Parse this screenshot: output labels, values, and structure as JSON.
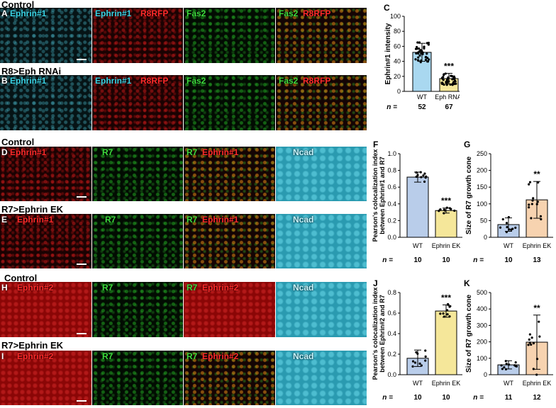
{
  "sections": {
    "control_top": "Control",
    "r8_eph": "R8>Eph RNAi",
    "control_mid": "Control",
    "r7_ephrin_mid": "R7>Ephrin EK",
    "control_bottom": "Control",
    "r7_ephrin_bottom": "R7>Ephrin EK"
  },
  "panel_letters": [
    "A",
    "B",
    "C",
    "D",
    "E",
    "F",
    "G",
    "H",
    "I",
    "J",
    "K"
  ],
  "labels": {
    "ephrin1": "Ephrin#1",
    "ephrin2": "Ephrin#2",
    "r8rfp": "R8RFP",
    "fas2": "Fas2",
    "r7": "R7",
    "ncad": "Ncad"
  },
  "colors": {
    "cyan": "#39d4e6",
    "red": "#ff2a2a",
    "green": "#3ddc3d",
    "wt_bar": "#a9d8f0",
    "mut_bar": "#f5e79a",
    "wt_bar2": "#b9cdea",
    "mut_bar2": "#f7d3b0"
  },
  "chart_data": [
    {
      "id": "C",
      "type": "bar",
      "ylabel": "Ephrin#1 intensity",
      "categories": [
        "WT",
        "Eph RNAi"
      ],
      "n_label": "n =",
      "n": [
        "52",
        "67"
      ],
      "values": [
        52,
        17
      ],
      "errors": [
        12,
        7
      ],
      "ylim": [
        0,
        100
      ],
      "yticks": [
        "0",
        "20",
        "40",
        "60",
        "80",
        "100"
      ],
      "annotation": "***"
    },
    {
      "id": "F",
      "type": "bar",
      "ylabel": "Pearson's colocalization index between Ephrin#1 and R7",
      "categories": [
        "WT",
        "Ephrin EK"
      ],
      "n_label": "n =",
      "n": [
        "10",
        "10"
      ],
      "values": [
        0.72,
        0.32
      ],
      "errors": [
        0.06,
        0.03
      ],
      "ylim": [
        0,
        1.0
      ],
      "yticks": [
        "0.0",
        "0.2",
        "0.4",
        "0.6",
        "0.8",
        "1.0"
      ],
      "annotation": "***"
    },
    {
      "id": "G",
      "type": "bar",
      "ylabel": "Size of R7 growth cone",
      "categories": [
        "WT",
        "Ephrin EK"
      ],
      "n_label": "n =",
      "n": [
        "10",
        "13"
      ],
      "values": [
        38,
        112
      ],
      "errors": [
        20,
        55
      ],
      "ylim": [
        0,
        250
      ],
      "yticks": [
        "0",
        "50",
        "100",
        "150",
        "200",
        "250"
      ],
      "annotation": "**"
    },
    {
      "id": "J",
      "type": "bar",
      "ylabel": "Pearson's colocalization index between Ephrin#2 and R7",
      "categories": [
        "WT",
        "Ephrin EK"
      ],
      "n_label": "n =",
      "n": [
        "10",
        "10"
      ],
      "values": [
        0.16,
        0.62
      ],
      "errors": [
        0.08,
        0.06
      ],
      "ylim": [
        0,
        0.8
      ],
      "yticks": [
        "0.0",
        "0.2",
        "0.4",
        "0.6",
        "0.8"
      ],
      "annotation": "***"
    },
    {
      "id": "K",
      "type": "bar",
      "ylabel": "Size of R7 growth cone",
      "categories": [
        "WT",
        "Ephrin EK"
      ],
      "n_label": "n =",
      "n": [
        "11",
        "12"
      ],
      "values": [
        60,
        198
      ],
      "errors": [
        25,
        165
      ],
      "ylim": [
        0,
        500
      ],
      "yticks": [
        "0",
        "100",
        "200",
        "300",
        "400",
        "500"
      ],
      "annotation": "**"
    }
  ]
}
